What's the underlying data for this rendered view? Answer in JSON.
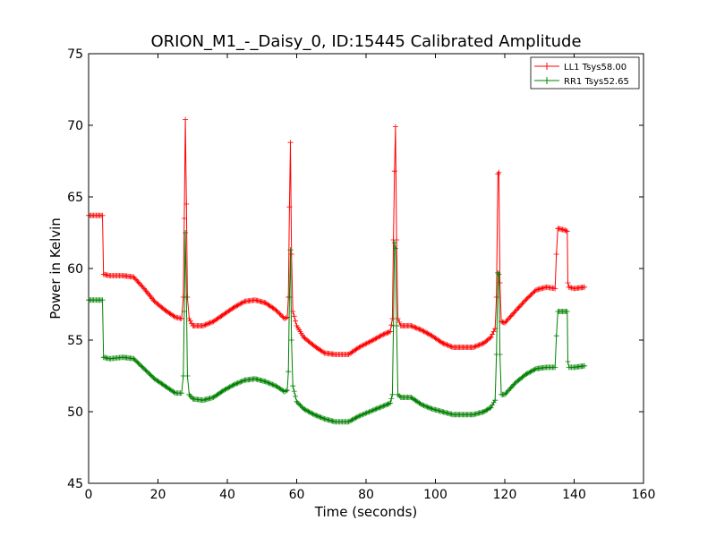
{
  "chart_data": {
    "type": "line",
    "title": "ORION_M1_-_Daisy_0, ID:15445 Calibrated Amplitude",
    "xlabel": "Time (seconds)",
    "ylabel": "Power in Kelvin",
    "xlim": [
      0,
      160
    ],
    "ylim": [
      45,
      75
    ],
    "xticks": [
      0,
      20,
      40,
      60,
      80,
      100,
      120,
      140,
      160
    ],
    "yticks": [
      45,
      50,
      55,
      60,
      65,
      70,
      75
    ],
    "grid": false,
    "legend_position": "top-right",
    "series": [
      {
        "name": "LL1 Tsys58.00",
        "color": "#ff0000",
        "points": [
          [
            0,
            63.7
          ],
          [
            4,
            63.7
          ],
          [
            4.3,
            59.6
          ],
          [
            6,
            59.5
          ],
          [
            10,
            59.5
          ],
          [
            13,
            59.4
          ],
          [
            16,
            58.6
          ],
          [
            19,
            57.7
          ],
          [
            22,
            57.1
          ],
          [
            25,
            56.6
          ],
          [
            26.8,
            56.5
          ],
          [
            27.3,
            58
          ],
          [
            27.6,
            63.5
          ],
          [
            27.9,
            70.4
          ],
          [
            28.2,
            64.5
          ],
          [
            28.5,
            58
          ],
          [
            29,
            56.5
          ],
          [
            30,
            56
          ],
          [
            33,
            56
          ],
          [
            36,
            56.3
          ],
          [
            39,
            56.8
          ],
          [
            42,
            57.3
          ],
          [
            45,
            57.7
          ],
          [
            48,
            57.8
          ],
          [
            51,
            57.6
          ],
          [
            54,
            57.1
          ],
          [
            56.5,
            56.5
          ],
          [
            57.3,
            56.6
          ],
          [
            57.6,
            58
          ],
          [
            57.9,
            64.3
          ],
          [
            58.2,
            68.8
          ],
          [
            58.5,
            61
          ],
          [
            58.9,
            57
          ],
          [
            60,
            56
          ],
          [
            62,
            55.2
          ],
          [
            65,
            54.6
          ],
          [
            68,
            54.1
          ],
          [
            71,
            54
          ],
          [
            75,
            54
          ],
          [
            78,
            54.5
          ],
          [
            82,
            55
          ],
          [
            85,
            55.4
          ],
          [
            87,
            55.6
          ],
          [
            87.6,
            56.5
          ],
          [
            87.9,
            62
          ],
          [
            88.2,
            66.8
          ],
          [
            88.5,
            69.9
          ],
          [
            88.8,
            62
          ],
          [
            89.2,
            56.5
          ],
          [
            90,
            56
          ],
          [
            93,
            56
          ],
          [
            96,
            55.7
          ],
          [
            99,
            55.3
          ],
          [
            102,
            54.8
          ],
          [
            105,
            54.5
          ],
          [
            108,
            54.5
          ],
          [
            111,
            54.5
          ],
          [
            114,
            54.8
          ],
          [
            116,
            55.2
          ],
          [
            117.2,
            55.8
          ],
          [
            117.6,
            58
          ],
          [
            118,
            66.6
          ],
          [
            118.3,
            66.7
          ],
          [
            118.6,
            59
          ],
          [
            119,
            56.3
          ],
          [
            120,
            56.2
          ],
          [
            123,
            57
          ],
          [
            126,
            57.8
          ],
          [
            129,
            58.5
          ],
          [
            132,
            58.7
          ],
          [
            134.5,
            58.6
          ],
          [
            134.9,
            61
          ],
          [
            135.3,
            62.8
          ],
          [
            137,
            62.7
          ],
          [
            138,
            62.6
          ],
          [
            138.2,
            59
          ],
          [
            138.5,
            58.7
          ],
          [
            140,
            58.6
          ],
          [
            143,
            58.7
          ]
        ]
      },
      {
        "name": "RR1 Tsys52.65",
        "color": "#008000",
        "points": [
          [
            0,
            57.8
          ],
          [
            4,
            57.8
          ],
          [
            4.3,
            53.8
          ],
          [
            6,
            53.7
          ],
          [
            10,
            53.8
          ],
          [
            13,
            53.7
          ],
          [
            16,
            53
          ],
          [
            19,
            52.3
          ],
          [
            22,
            51.8
          ],
          [
            25,
            51.3
          ],
          [
            26.8,
            51.3
          ],
          [
            27.3,
            52.5
          ],
          [
            27.6,
            57
          ],
          [
            27.9,
            62.5
          ],
          [
            28.2,
            58
          ],
          [
            28.5,
            52.5
          ],
          [
            29,
            51.2
          ],
          [
            30,
            50.9
          ],
          [
            33,
            50.8
          ],
          [
            36,
            51
          ],
          [
            39,
            51.5
          ],
          [
            42,
            51.9
          ],
          [
            45,
            52.2
          ],
          [
            48,
            52.3
          ],
          [
            51,
            52.1
          ],
          [
            54,
            51.8
          ],
          [
            56.5,
            51.4
          ],
          [
            57.3,
            51.5
          ],
          [
            57.6,
            52.8
          ],
          [
            57.9,
            58
          ],
          [
            58.2,
            61.3
          ],
          [
            58.5,
            55
          ],
          [
            58.9,
            51.8
          ],
          [
            60,
            50.7
          ],
          [
            62,
            50.2
          ],
          [
            65,
            49.8
          ],
          [
            68,
            49.5
          ],
          [
            71,
            49.3
          ],
          [
            75,
            49.3
          ],
          [
            78,
            49.7
          ],
          [
            82,
            50.1
          ],
          [
            85,
            50.4
          ],
          [
            87,
            50.6
          ],
          [
            87.6,
            51.2
          ],
          [
            87.9,
            56
          ],
          [
            88.2,
            61.8
          ],
          [
            88.5,
            61.4
          ],
          [
            88.8,
            56
          ],
          [
            89.2,
            51.2
          ],
          [
            90,
            51
          ],
          [
            93,
            51
          ],
          [
            96,
            50.5
          ],
          [
            99,
            50.2
          ],
          [
            102,
            50
          ],
          [
            105,
            49.8
          ],
          [
            108,
            49.8
          ],
          [
            111,
            49.8
          ],
          [
            114,
            50
          ],
          [
            116,
            50.3
          ],
          [
            117.2,
            50.8
          ],
          [
            117.6,
            54
          ],
          [
            118,
            59.7
          ],
          [
            118.3,
            59.6
          ],
          [
            118.6,
            54
          ],
          [
            119,
            51.2
          ],
          [
            120,
            51.2
          ],
          [
            123,
            52
          ],
          [
            126,
            52.6
          ],
          [
            129,
            53
          ],
          [
            132,
            53.1
          ],
          [
            134.5,
            53.1
          ],
          [
            134.9,
            55.3
          ],
          [
            135.3,
            57
          ],
          [
            137,
            57
          ],
          [
            138,
            57
          ],
          [
            138.2,
            53.5
          ],
          [
            138.5,
            53.1
          ],
          [
            140,
            53.1
          ],
          [
            143,
            53.2
          ]
        ]
      }
    ]
  }
}
